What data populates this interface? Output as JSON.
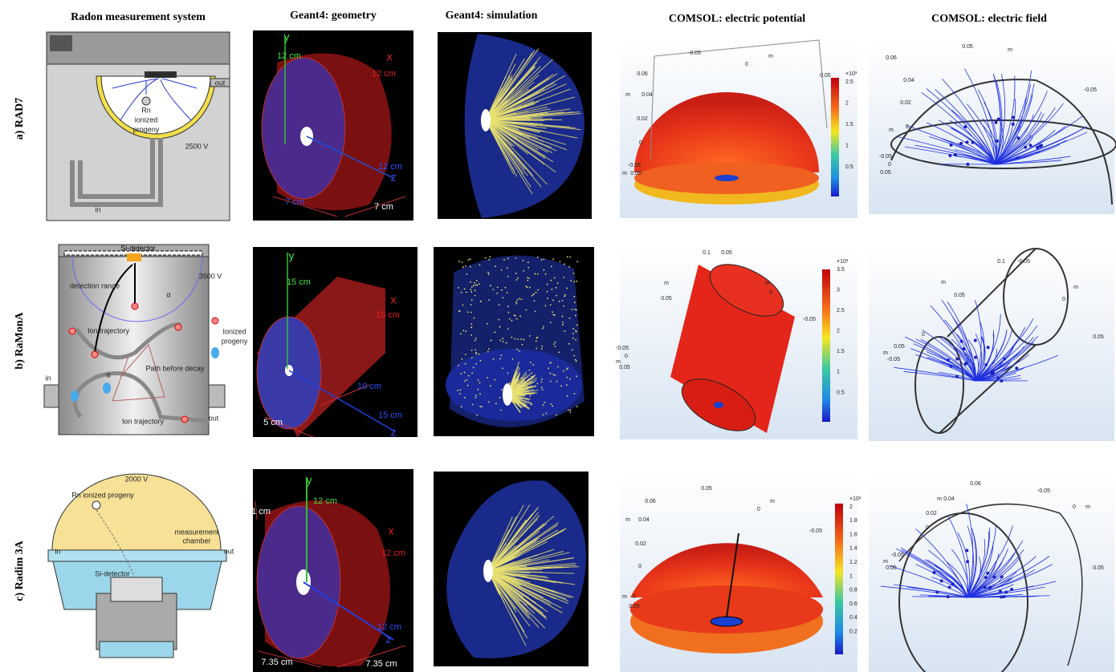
{
  "columns": [
    "Radon measurement system",
    "Geant4: geometry",
    "Geant4: simulation",
    "COMSOL: electric potential",
    "COMSOL: electric field"
  ],
  "rows": [
    {
      "label": "a) RAD7",
      "system": [
        "detector",
        "Rn",
        "ionized",
        "progeny",
        "out",
        "2500 V",
        "in"
      ],
      "geometry": [
        "y",
        "12 cm",
        "x",
        "12 cm",
        "12 cm",
        "z",
        "7 cm",
        "7 cm"
      ],
      "potential": {
        "axes": [
          "-0.05",
          "0",
          "m",
          "0.05",
          "0.06",
          "m",
          "0.04",
          "0.02",
          "0",
          "-0.05",
          "m",
          "0.05"
        ],
        "colorbar": [
          "×10³",
          "2.5",
          "2",
          "1.5",
          "1",
          "0.5"
        ]
      },
      "field": [
        "0.05",
        "m",
        "0.06",
        "0.04",
        "0.02",
        "0",
        "m",
        "-0.05",
        "-0.05",
        "0",
        "0.05"
      ]
    },
    {
      "label": "b) RaMonA",
      "system": [
        "Si-detector",
        "detection range",
        "3500 V",
        "α",
        "Ion trajectory",
        "Ionized",
        "progeny",
        "Path before decay",
        "in",
        "out",
        "Ion trajectory",
        "α"
      ],
      "geometry": [
        "y",
        "15 cm",
        "x",
        "15 cm",
        "15 cm",
        "z",
        "10 cm",
        "5 cm"
      ],
      "potential": {
        "axes": [
          "0.1",
          "0.05",
          "m",
          "0.05",
          "m",
          "0",
          "-0.05",
          "-0.05",
          "0",
          "m",
          "0.05"
        ],
        "colorbar": [
          "×10³",
          "3.5",
          "3",
          "2.5",
          "2",
          "1.5",
          "1",
          "0.5"
        ]
      },
      "field": [
        "0.1",
        "-0.05",
        "m",
        "0.05",
        "m",
        "0",
        "0",
        "0.05",
        "m",
        "-0.05",
        "0.05"
      ]
    },
    {
      "label": "c) Radim 3A",
      "system": [
        "2000 V",
        "Rn ionized progeny",
        "measurement",
        "chamber",
        "in",
        "out",
        "Si-detector"
      ],
      "geometry": [
        "y",
        "12 cm",
        "1 cm",
        "x",
        "12 cm",
        "12 cm",
        "z",
        "7.35 cm",
        "7.35 cm"
      ],
      "potential": {
        "axes": [
          "0.05",
          "0.06",
          "m",
          "0",
          "m",
          "0.04",
          "0.02",
          "0",
          "-0.05",
          "m",
          "0",
          "0.05"
        ],
        "colorbar": [
          "×10³",
          "2",
          "1.8",
          "1.6",
          "1.4",
          "1.2",
          "1",
          "0.8",
          "0.6",
          "0.4",
          "0.2"
        ]
      },
      "field": [
        "0.06",
        "m",
        "0.04",
        "-0.05",
        "0.02",
        "0",
        "0",
        "m",
        "-0.05",
        "m",
        "0.05",
        "0.05"
      ]
    }
  ]
}
